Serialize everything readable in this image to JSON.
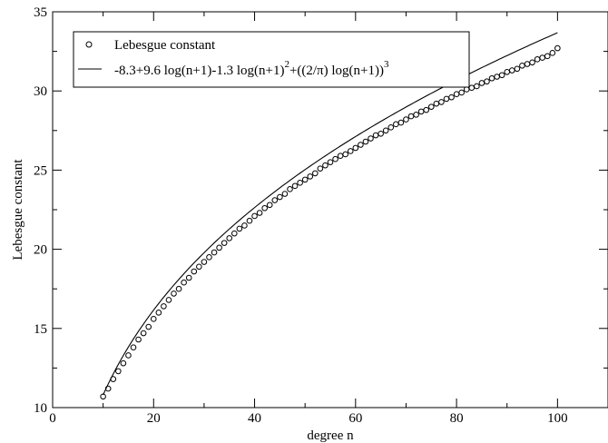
{
  "chart_data": {
    "type": "scatter",
    "title": "",
    "xlabel": "degree n",
    "ylabel": "Lebesgue constant",
    "xlim": [
      0,
      110
    ],
    "ylim": [
      10,
      35
    ],
    "xticks": [
      0,
      20,
      40,
      60,
      80,
      100
    ],
    "yticks": [
      10,
      15,
      20,
      25,
      30,
      35
    ],
    "grid": false,
    "legend_position": "top-left",
    "series": [
      {
        "name": "Lebesgue constant",
        "style": "markers",
        "marker": "open-circle",
        "x": [
          10,
          11,
          12,
          13,
          14,
          15,
          16,
          17,
          18,
          19,
          20,
          21,
          22,
          23,
          24,
          25,
          26,
          27,
          28,
          29,
          30,
          31,
          32,
          33,
          34,
          35,
          36,
          37,
          38,
          39,
          40,
          41,
          42,
          43,
          44,
          45,
          46,
          47,
          48,
          49,
          50,
          51,
          52,
          53,
          54,
          55,
          56,
          57,
          58,
          59,
          60,
          61,
          62,
          63,
          64,
          65,
          66,
          67,
          68,
          69,
          70,
          71,
          72,
          73,
          74,
          75,
          76,
          77,
          78,
          79,
          80,
          81,
          82,
          83,
          84,
          85,
          86,
          87,
          88,
          89,
          90,
          91,
          92,
          93,
          94,
          95,
          96,
          97,
          98,
          99,
          100
        ],
        "y": [
          10.7,
          11.2,
          11.8,
          12.3,
          12.8,
          13.3,
          13.8,
          14.3,
          14.7,
          15.1,
          15.6,
          16.0,
          16.4,
          16.8,
          17.2,
          17.5,
          17.9,
          18.2,
          18.6,
          18.9,
          19.2,
          19.5,
          19.8,
          20.1,
          20.4,
          20.7,
          21.0,
          21.3,
          21.5,
          21.8,
          22.1,
          22.3,
          22.6,
          22.8,
          23.1,
          23.3,
          23.5,
          23.8,
          24.0,
          24.2,
          24.4,
          24.6,
          24.8,
          25.1,
          25.3,
          25.5,
          25.7,
          25.9,
          26.0,
          26.2,
          26.4,
          26.6,
          26.8,
          27.0,
          27.2,
          27.3,
          27.5,
          27.7,
          27.9,
          28.0,
          28.2,
          28.4,
          28.5,
          28.7,
          28.8,
          29.0,
          29.2,
          29.3,
          29.5,
          29.6,
          29.8,
          29.9,
          30.1,
          30.2,
          30.3,
          30.5,
          30.6,
          30.8,
          30.9,
          31.0,
          31.2,
          31.3,
          31.4,
          31.6,
          31.7,
          31.8,
          32.0,
          32.1,
          32.2,
          32.4,
          32.7
        ]
      },
      {
        "name": "-8.3+9.6 log(n+1)-1.3 log(n+1)²+((2/π) log(n+1))³",
        "style": "line",
        "formula": {
          "a": -8.3,
          "b": 9.6,
          "c": -1.3,
          "d": 0.6366197724
        },
        "x_range": [
          10,
          100
        ]
      }
    ]
  },
  "legend": {
    "item1": "Lebesgue constant",
    "item2_main": "-8.3+9.6 log(n+1)-1.3 log(n+1)",
    "item2_sup1": "2",
    "item2_mid": "+((2/π) log(n+1))",
    "item2_sup2": "3"
  }
}
